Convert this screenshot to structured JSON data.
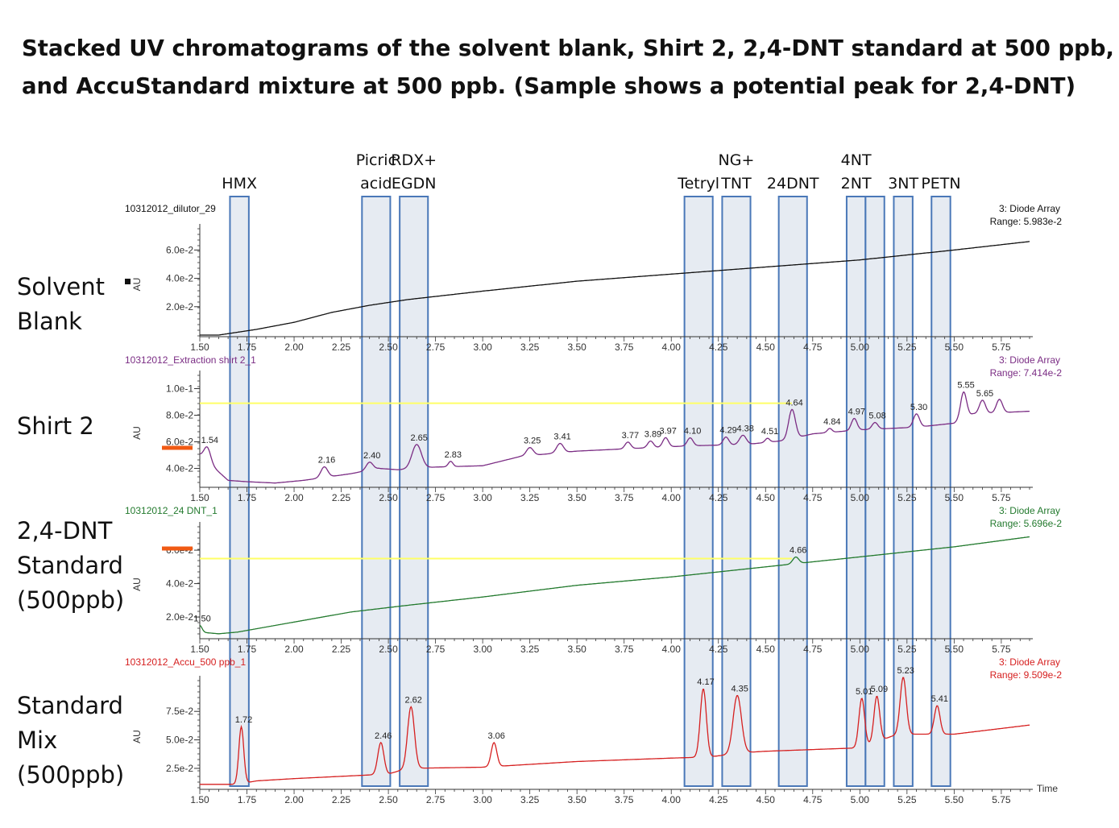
{
  "title_lines": [
    "Stacked UV chromatograms of the solvent blank, Shirt 2, 2,4-DNT standard at 500 ppb,",
    "and AccuStandard mixture at 500 ppb. (Sample shows a potential peak for 2,4-DNT)"
  ],
  "panel_labels": [
    [
      "Solvent",
      "Blank"
    ],
    [
      "Shirt 2"
    ],
    [
      "2,4-DNT",
      "Standard",
      "(500ppb)"
    ],
    [
      "Standard",
      "Mix",
      "(500ppb)"
    ]
  ],
  "chart_data": {
    "type": "line",
    "x_axis": {
      "range": [
        1.5,
        5.9
      ],
      "ticks": [
        "1.50",
        "1.75",
        "2.00",
        "2.25",
        "2.50",
        "2.75",
        "3.00",
        "3.25",
        "3.50",
        "3.75",
        "4.00",
        "4.25",
        "4.50",
        "4.75",
        "5.00",
        "5.25",
        "5.50",
        "5.75"
      ],
      "label": "Time"
    },
    "compound_windows": [
      {
        "label": [
          "HMX"
        ],
        "range": [
          1.66,
          1.76
        ]
      },
      {
        "label": [
          "Picric",
          "acid"
        ],
        "range": [
          2.36,
          2.51
        ]
      },
      {
        "label": [
          "RDX+",
          "EGDN"
        ],
        "range": [
          2.56,
          2.71
        ]
      },
      {
        "label": [
          "Tetryl"
        ],
        "range": [
          4.07,
          4.22
        ]
      },
      {
        "label": [
          "NG+",
          "TNT"
        ],
        "range": [
          4.27,
          4.42
        ]
      },
      {
        "label": [
          "24DNT"
        ],
        "range": [
          4.57,
          4.72
        ]
      },
      {
        "label": [
          "4NT",
          "2NT"
        ],
        "range": [
          4.93,
          5.03
        ]
      },
      {
        "label": [],
        "range": [
          5.03,
          5.13
        ]
      },
      {
        "label": [
          "3NT"
        ],
        "range": [
          5.18,
          5.28
        ]
      },
      {
        "label": [
          "PETN"
        ],
        "range": [
          5.38,
          5.48
        ]
      }
    ],
    "panels": [
      {
        "name": "10312012_dilutor_29",
        "detector": "3: Diode Array",
        "range_text": "Range: 5.983e-2",
        "color": "#111111",
        "y_label": "AU",
        "y_range": [
          0.0,
          0.075
        ],
        "y_ticks": [
          {
            "v": 0.02,
            "t": "2.0e-2"
          },
          {
            "v": 0.04,
            "t": "4.0e-2"
          },
          {
            "v": 0.06,
            "t": "6.0e-2"
          }
        ],
        "baseline": [
          [
            1.5,
            0.0
          ],
          [
            1.6,
            0.0
          ],
          [
            1.7,
            0.002
          ],
          [
            1.8,
            0.004
          ],
          [
            2.0,
            0.009
          ],
          [
            2.2,
            0.016
          ],
          [
            2.4,
            0.021
          ],
          [
            2.6,
            0.025
          ],
          [
            3.0,
            0.031
          ],
          [
            3.5,
            0.038
          ],
          [
            4.0,
            0.043
          ],
          [
            4.5,
            0.048
          ],
          [
            5.0,
            0.053
          ],
          [
            5.5,
            0.06
          ],
          [
            5.9,
            0.066
          ]
        ],
        "peaks": [],
        "reference_line": null,
        "marker": "square"
      },
      {
        "name": "10312012_Extraction shirt 2_1",
        "detector": "3: Diode Array",
        "range_text": "Range: 7.414e-2",
        "color": "#7b2d84",
        "y_label": "AU",
        "y_range": [
          0.027,
          0.11
        ],
        "y_ticks": [
          {
            "v": 0.04,
            "t": "4.0e-2"
          },
          {
            "v": 0.06,
            "t": "6.0e-2"
          },
          {
            "v": 0.08,
            "t": "8.0e-2"
          },
          {
            "v": 0.1,
            "t": "1.0e-1"
          }
        ],
        "baseline": [
          [
            1.5,
            0.05
          ],
          [
            1.58,
            0.04
          ],
          [
            1.65,
            0.031
          ],
          [
            1.75,
            0.03
          ],
          [
            1.9,
            0.029
          ],
          [
            2.05,
            0.031
          ],
          [
            2.3,
            0.036
          ],
          [
            2.45,
            0.04
          ],
          [
            2.55,
            0.039
          ],
          [
            2.75,
            0.041
          ],
          [
            3.0,
            0.042
          ],
          [
            3.2,
            0.049
          ],
          [
            3.5,
            0.053
          ],
          [
            3.8,
            0.055
          ],
          [
            4.1,
            0.057
          ],
          [
            4.4,
            0.058
          ],
          [
            4.6,
            0.061
          ],
          [
            4.75,
            0.066
          ],
          [
            5.0,
            0.069
          ],
          [
            5.3,
            0.071
          ],
          [
            5.5,
            0.074
          ],
          [
            5.6,
            0.081
          ],
          [
            5.9,
            0.083
          ]
        ],
        "peaks": [
          {
            "x": 1.54,
            "label": "1.54",
            "h": 0.011,
            "w": 0.018
          },
          {
            "x": 2.16,
            "label": "2.16",
            "h": 0.008,
            "w": 0.018
          },
          {
            "x": 2.4,
            "label": "2.40",
            "h": 0.006,
            "w": 0.018
          },
          {
            "x": 2.65,
            "label": "2.65",
            "h": 0.018,
            "w": 0.025
          },
          {
            "x": 2.83,
            "label": "2.83",
            "h": 0.004,
            "w": 0.012
          },
          {
            "x": 3.25,
            "label": "3.25",
            "h": 0.006,
            "w": 0.018
          },
          {
            "x": 3.41,
            "label": "3.41",
            "h": 0.007,
            "w": 0.018
          },
          {
            "x": 3.77,
            "label": "3.77",
            "h": 0.005,
            "w": 0.015
          },
          {
            "x": 3.89,
            "label": "3.89",
            "h": 0.005,
            "w": 0.015
          },
          {
            "x": 3.97,
            "label": "3.97",
            "h": 0.007,
            "w": 0.015
          },
          {
            "x": 4.1,
            "label": "4.10",
            "h": 0.006,
            "w": 0.015
          },
          {
            "x": 4.29,
            "label": "4.29",
            "h": 0.006,
            "w": 0.015
          },
          {
            "x": 4.38,
            "label": "4.38",
            "h": 0.007,
            "w": 0.018
          },
          {
            "x": 4.51,
            "label": "4.51",
            "h": 0.003,
            "w": 0.012
          },
          {
            "x": 4.64,
            "label": "4.64",
            "h": 0.022,
            "w": 0.018
          },
          {
            "x": 4.84,
            "label": "4.84",
            "h": 0.003,
            "w": 0.012
          },
          {
            "x": 4.97,
            "label": "4.97",
            "h": 0.009,
            "w": 0.015
          },
          {
            "x": 5.08,
            "label": "5.08",
            "h": 0.005,
            "w": 0.015
          },
          {
            "x": 5.3,
            "label": "5.30",
            "h": 0.01,
            "w": 0.016
          },
          {
            "x": 5.55,
            "label": "5.55",
            "h": 0.02,
            "w": 0.016
          },
          {
            "x": 5.65,
            "label": "5.65",
            "h": 0.01,
            "w": 0.016
          },
          {
            "x": 5.74,
            "label": "",
            "h": 0.01,
            "w": 0.016
          }
        ],
        "reference_line": {
          "y": 0.089,
          "to_x": 4.64,
          "color": "#ffff66"
        },
        "marker": "orange-bar"
      },
      {
        "name": "10312012_24 DNT_1",
        "detector": "3: Diode Array",
        "range_text": "Range: 5.696e-2",
        "color": "#237a2e",
        "y_label": "AU",
        "y_range": [
          0.008,
          0.074
        ],
        "y_ticks": [
          {
            "v": 0.02,
            "t": "2.0e-2"
          },
          {
            "v": 0.04,
            "t": "4.0e-2"
          },
          {
            "v": 0.06,
            "t": "6.0e-2"
          }
        ],
        "baseline": [
          [
            1.5,
            0.011
          ],
          [
            1.6,
            0.01
          ],
          [
            1.7,
            0.011
          ],
          [
            2.0,
            0.017
          ],
          [
            2.3,
            0.023
          ],
          [
            2.6,
            0.027
          ],
          [
            3.0,
            0.032
          ],
          [
            3.5,
            0.039
          ],
          [
            4.0,
            0.044
          ],
          [
            4.5,
            0.05
          ],
          [
            5.0,
            0.056
          ],
          [
            5.5,
            0.062
          ],
          [
            5.9,
            0.068
          ]
        ],
        "peaks": [
          {
            "x": 1.5,
            "label": "1.50",
            "h": 0.004,
            "w": 0.012
          },
          {
            "x": 4.66,
            "label": "4.66",
            "h": 0.004,
            "w": 0.016
          }
        ],
        "reference_line": {
          "y": 0.055,
          "to_x": 4.64,
          "color": "#ffff66"
        },
        "marker": "orange-bar"
      },
      {
        "name": "10312012_Accu_500 ppb_1",
        "detector": "3: Diode Array",
        "range_text": "Range: 9.509e-2",
        "color": "#d62020",
        "y_label": "AU",
        "y_range": [
          0.008,
          0.102
        ],
        "y_ticks": [
          {
            "v": 0.025,
            "t": "2.5e-2"
          },
          {
            "v": 0.05,
            "t": "5.0e-2"
          },
          {
            "v": 0.075,
            "t": "7.5e-2"
          }
        ],
        "baseline": [
          [
            1.5,
            0.011
          ],
          [
            1.6,
            0.011
          ],
          [
            1.7,
            0.011
          ],
          [
            1.8,
            0.014
          ],
          [
            2.0,
            0.016
          ],
          [
            2.5,
            0.02
          ],
          [
            2.6,
            0.025
          ],
          [
            3.0,
            0.026
          ],
          [
            3.5,
            0.031
          ],
          [
            4.0,
            0.034
          ],
          [
            4.2,
            0.035
          ],
          [
            4.4,
            0.039
          ],
          [
            4.5,
            0.04
          ],
          [
            5.0,
            0.043
          ],
          [
            5.2,
            0.055
          ],
          [
            5.5,
            0.055
          ],
          [
            5.9,
            0.063
          ]
        ],
        "peaks": [
          {
            "x": 1.72,
            "label": "1.72",
            "h": 0.05,
            "w": 0.013
          },
          {
            "x": 2.46,
            "label": "2.46",
            "h": 0.028,
            "w": 0.016
          },
          {
            "x": 2.62,
            "label": "2.62",
            "h": 0.054,
            "w": 0.018
          },
          {
            "x": 3.06,
            "label": "3.06",
            "h": 0.021,
            "w": 0.015
          },
          {
            "x": 4.17,
            "label": "4.17",
            "h": 0.06,
            "w": 0.016
          },
          {
            "x": 4.35,
            "label": "4.35",
            "h": 0.051,
            "w": 0.022
          },
          {
            "x": 5.01,
            "label": "5.01",
            "h": 0.043,
            "w": 0.015
          },
          {
            "x": 5.09,
            "label": "5.09",
            "h": 0.04,
            "w": 0.015
          },
          {
            "x": 5.23,
            "label": "5.23",
            "h": 0.05,
            "w": 0.016
          },
          {
            "x": 5.41,
            "label": "5.41",
            "h": 0.025,
            "w": 0.015
          }
        ],
        "reference_line": null,
        "marker": null
      }
    ]
  }
}
